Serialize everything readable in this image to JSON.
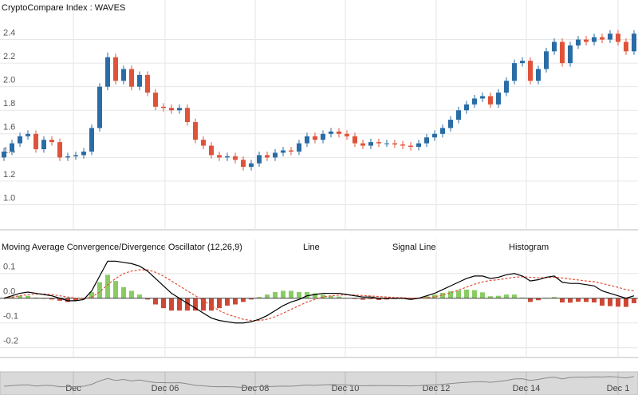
{
  "chart_data": [
    {
      "type": "candlestick",
      "title": "CryptoCompare Index : WAVES",
      "open": [
        1.4,
        1.45,
        1.52,
        1.58,
        1.6,
        1.47,
        1.55,
        1.53,
        1.4,
        1.41,
        1.42,
        1.45,
        1.65,
        2.0,
        2.25,
        2.05,
        2.15,
        2.0,
        2.1,
        1.95,
        1.83,
        1.82,
        1.8,
        1.82,
        1.7,
        1.55,
        1.5,
        1.42,
        1.4,
        1.41,
        1.38,
        1.32,
        1.35,
        1.42,
        1.4,
        1.44,
        1.46,
        1.45,
        1.52,
        1.58,
        1.55,
        1.6,
        1.62,
        1.6,
        1.58,
        1.52,
        1.5,
        1.53,
        1.52,
        1.52,
        1.51,
        1.5,
        1.49,
        1.52,
        1.57,
        1.6,
        1.65,
        1.72,
        1.8,
        1.85,
        1.9,
        1.92,
        1.85,
        1.95,
        2.05,
        2.2,
        2.22,
        2.05,
        2.15,
        2.3,
        2.38,
        2.2,
        2.35,
        2.4,
        2.38,
        2.42,
        2.4,
        2.45,
        2.38,
        2.3
      ],
      "high": [
        1.48,
        1.55,
        1.61,
        1.63,
        1.63,
        1.58,
        1.58,
        1.56,
        1.44,
        1.45,
        1.48,
        1.68,
        2.03,
        2.29,
        2.28,
        2.18,
        2.18,
        2.13,
        2.13,
        1.98,
        1.86,
        1.85,
        1.85,
        1.85,
        1.73,
        1.58,
        1.53,
        1.45,
        1.44,
        1.44,
        1.41,
        1.38,
        1.45,
        1.45,
        1.47,
        1.49,
        1.49,
        1.55,
        1.61,
        1.61,
        1.63,
        1.65,
        1.65,
        1.63,
        1.61,
        1.55,
        1.56,
        1.56,
        1.55,
        1.55,
        1.54,
        1.53,
        1.55,
        1.6,
        1.63,
        1.68,
        1.75,
        1.83,
        1.88,
        1.93,
        1.95,
        1.95,
        1.98,
        2.08,
        2.23,
        2.25,
        2.25,
        2.18,
        2.33,
        2.41,
        2.41,
        2.38,
        2.43,
        2.43,
        2.45,
        2.45,
        2.48,
        2.48,
        2.41,
        2.48
      ],
      "low": [
        1.37,
        1.42,
        1.49,
        1.55,
        1.44,
        1.44,
        1.5,
        1.37,
        1.37,
        1.38,
        1.39,
        1.42,
        1.62,
        1.97,
        2.02,
        2.02,
        1.97,
        1.97,
        1.92,
        1.8,
        1.79,
        1.77,
        1.77,
        1.67,
        1.52,
        1.47,
        1.39,
        1.37,
        1.37,
        1.35,
        1.29,
        1.29,
        1.32,
        1.37,
        1.37,
        1.41,
        1.42,
        1.42,
        1.49,
        1.52,
        1.52,
        1.57,
        1.57,
        1.55,
        1.49,
        1.47,
        1.47,
        1.49,
        1.49,
        1.48,
        1.47,
        1.46,
        1.46,
        1.49,
        1.54,
        1.57,
        1.62,
        1.69,
        1.77,
        1.82,
        1.87,
        1.82,
        1.82,
        1.92,
        2.02,
        2.17,
        2.02,
        2.02,
        2.12,
        2.27,
        2.17,
        2.17,
        2.32,
        2.35,
        2.35,
        2.37,
        2.37,
        2.35,
        2.27,
        2.27
      ],
      "close": [
        1.45,
        1.52,
        1.58,
        1.6,
        1.47,
        1.55,
        1.53,
        1.4,
        1.41,
        1.42,
        1.45,
        1.65,
        2.0,
        2.25,
        2.05,
        2.15,
        2.0,
        2.1,
        1.95,
        1.83,
        1.82,
        1.8,
        1.82,
        1.7,
        1.55,
        1.5,
        1.42,
        1.4,
        1.41,
        1.38,
        1.32,
        1.35,
        1.42,
        1.4,
        1.44,
        1.46,
        1.45,
        1.52,
        1.58,
        1.55,
        1.6,
        1.62,
        1.6,
        1.58,
        1.52,
        1.5,
        1.53,
        1.52,
        1.52,
        1.51,
        1.5,
        1.49,
        1.52,
        1.57,
        1.6,
        1.65,
        1.72,
        1.8,
        1.85,
        1.9,
        1.92,
        1.85,
        1.95,
        2.05,
        2.2,
        2.22,
        2.05,
        2.15,
        2.3,
        2.38,
        2.2,
        2.35,
        2.4,
        2.38,
        2.42,
        2.4,
        2.45,
        2.38,
        2.3,
        2.45
      ],
      "up_color": "#2a6ca5",
      "down_color": "#e0533a",
      "ylim": [
        0.8,
        2.6
      ],
      "yticks": [
        {
          "value": 1,
          "label": "1.0"
        },
        {
          "value": 1.2,
          "label": "1.2"
        },
        {
          "value": 1.4,
          "label": "1.4"
        },
        {
          "value": 1.6,
          "label": "1.6"
        },
        {
          "value": 1.8,
          "label": "1.8"
        },
        {
          "value": 2,
          "label": "2.0"
        },
        {
          "value": 2.2,
          "label": "2.2"
        },
        {
          "value": 2.4,
          "label": "2.4"
        }
      ],
      "xlim": [
        -0.5,
        79.5
      ],
      "xticks": [
        {
          "value": 8.7,
          "label": "Dec"
        },
        {
          "value": 20.2,
          "label": "Dec 06"
        },
        {
          "value": 31.5,
          "label": "Dec 08"
        },
        {
          "value": 42.8,
          "label": "Dec 10"
        },
        {
          "value": 54.2,
          "label": "Dec 12"
        },
        {
          "value": 65.5,
          "label": "Dec 14"
        },
        {
          "value": 77,
          "label": "Dec 1"
        }
      ],
      "grid": true
    },
    {
      "type": "macd",
      "title": "Moving Average Convergence/Divergence Oscillator (12,26,9)",
      "series": [
        {
          "name": "Line",
          "color": "#000000",
          "values": [
            0,
            0.01,
            0.02,
            0.025,
            0.02,
            0.015,
            0.01,
            0,
            -0.01,
            -0.01,
            -0.005,
            0.03,
            0.09,
            0.15,
            0.15,
            0.145,
            0.14,
            0.13,
            0.11,
            0.08,
            0.05,
            0.02,
            0,
            -0.02,
            -0.04,
            -0.06,
            -0.08,
            -0.09,
            -0.095,
            -0.1,
            -0.1,
            -0.095,
            -0.085,
            -0.07,
            -0.05,
            -0.03,
            -0.015,
            -0.005,
            0.01,
            0.015,
            0.02,
            0.02,
            0.02,
            0.015,
            0.01,
            0.005,
            0.005,
            0,
            0,
            0,
            0,
            -0.005,
            0,
            0.01,
            0.02,
            0.035,
            0.05,
            0.065,
            0.08,
            0.09,
            0.09,
            0.08,
            0.085,
            0.095,
            0.1,
            0.09,
            0.07,
            0.075,
            0.085,
            0.09,
            0.065,
            0.06,
            0.06,
            0.055,
            0.05,
            0.03,
            0.02,
            0.01,
            0,
            0.01
          ]
        },
        {
          "name": "Signal Line",
          "color": "#e0533a",
          "values": [
            0,
            0.005,
            0.01,
            0.015,
            0.017,
            0.017,
            0.015,
            0.01,
            0.005,
            0,
            -0.002,
            0.005,
            0.025,
            0.055,
            0.08,
            0.1,
            0.11,
            0.115,
            0.115,
            0.105,
            0.09,
            0.07,
            0.05,
            0.03,
            0.01,
            -0.01,
            -0.03,
            -0.05,
            -0.065,
            -0.075,
            -0.085,
            -0.09,
            -0.09,
            -0.085,
            -0.075,
            -0.06,
            -0.045,
            -0.03,
            -0.015,
            -0.005,
            0.005,
            0.01,
            0.013,
            0.014,
            0.013,
            0.011,
            0.009,
            0.007,
            0.005,
            0.003,
            0.002,
            0,
            0,
            0.002,
            0.006,
            0.013,
            0.022,
            0.033,
            0.045,
            0.057,
            0.066,
            0.072,
            0.075,
            0.08,
            0.085,
            0.087,
            0.085,
            0.083,
            0.083,
            0.085,
            0.082,
            0.078,
            0.074,
            0.07,
            0.067,
            0.06,
            0.052,
            0.044,
            0.035,
            0.03
          ]
        },
        {
          "name": "Histogram",
          "color": "#7cc653",
          "negative_color": "#c9341f",
          "values": [
            0,
            0.005,
            0.01,
            0.01,
            0.003,
            -0.002,
            -0.005,
            -0.01,
            -0.015,
            -0.01,
            -0.003,
            0.025,
            0.065,
            0.095,
            0.07,
            0.045,
            0.03,
            0.015,
            -0.005,
            -0.025,
            -0.04,
            -0.05,
            -0.05,
            -0.05,
            -0.05,
            -0.05,
            -0.05,
            -0.04,
            -0.03,
            -0.025,
            -0.015,
            -0.005,
            0.005,
            0.015,
            0.025,
            0.03,
            0.03,
            0.025,
            0.025,
            0.02,
            0.015,
            0.01,
            0.007,
            0.001,
            -0.003,
            -0.006,
            -0.004,
            -0.007,
            -0.005,
            -0.003,
            -0.002,
            -0.005,
            0,
            0.008,
            0.014,
            0.022,
            0.028,
            0.032,
            0.035,
            0.033,
            0.024,
            0.008,
            0.01,
            0.015,
            0.015,
            0.003,
            -0.015,
            -0.008,
            0.002,
            0.005,
            -0.017,
            -0.018,
            -0.014,
            -0.015,
            -0.017,
            -0.03,
            -0.032,
            -0.034,
            -0.035,
            -0.02
          ]
        }
      ],
      "ylim": [
        -0.23,
        0.18
      ],
      "yticks": [
        {
          "value": -0.2,
          "label": "-0.2"
        },
        {
          "value": -0.1,
          "label": "-0.1"
        },
        {
          "value": 0,
          "label": "0.0"
        },
        {
          "value": 0.1,
          "label": "0.1"
        }
      ],
      "xlim": [
        -0.5,
        79.5
      ]
    }
  ]
}
